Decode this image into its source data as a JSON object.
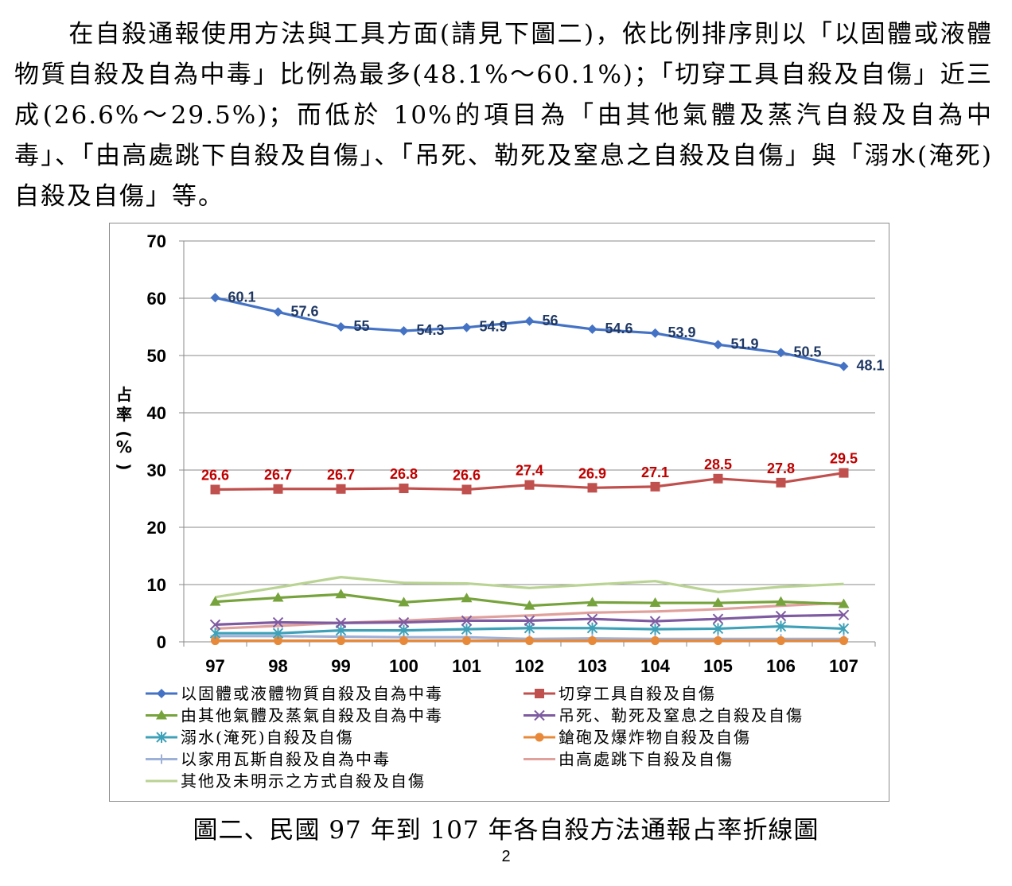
{
  "paragraph": "在自殺通報使用方法與工具方面(請見下圖二)，依比例排序則以「以固體或液體物質自殺及自為中毒」比例為最多(48.1%～60.1%)；「切穿工具自殺及自傷」近三成(26.6%～29.5%)；而低於 10%的項目為「由其他氣體及蒸汽自殺及自為中毒」、「由高處跳下自殺及自傷」、「吊死、勒死及窒息之自殺及自傷」與「溺水(淹死)自殺及自傷」等。",
  "caption": "圖二、民國 97 年到 107 年各自殺方法通報占率折線圖",
  "page_number": "2",
  "chart_data": {
    "type": "line",
    "title": "",
    "xlabel": "",
    "ylabel": "占率(%)",
    "ylim": [
      0,
      70
    ],
    "yticks": [
      "0",
      "10",
      "20",
      "30",
      "40",
      "50",
      "60",
      "70"
    ],
    "grid": true,
    "legend_position": "bottom",
    "categories": [
      "97",
      "98",
      "99",
      "100",
      "101",
      "102",
      "103",
      "104",
      "105",
      "106",
      "107"
    ],
    "series": [
      {
        "name": "以固體或液體物質自殺及自為中毒",
        "color": "#4472C4",
        "marker": "diamond",
        "labels": true,
        "label_color": "#1F3864",
        "values": [
          60.1,
          57.6,
          55,
          54.3,
          54.9,
          56,
          54.6,
          53.9,
          51.9,
          50.5,
          48.1
        ]
      },
      {
        "name": "切穿工具自殺及自傷",
        "color": "#C0504D",
        "marker": "square",
        "labels": true,
        "label_color": "#C00000",
        "values": [
          26.6,
          26.7,
          26.7,
          26.8,
          26.6,
          27.4,
          26.9,
          27.1,
          28.5,
          27.8,
          29.5
        ]
      },
      {
        "name": "由其他氣體及蒸氣自殺及自為中毒",
        "color": "#77A33C",
        "marker": "triangle",
        "labels": false,
        "values": [
          7.0,
          7.7,
          8.3,
          6.9,
          7.6,
          6.3,
          6.9,
          6.8,
          6.8,
          7.0,
          6.6
        ]
      },
      {
        "name": "吊死、勒死及窒息之自殺及自傷",
        "color": "#7E5BA0",
        "marker": "x",
        "labels": false,
        "values": [
          3.0,
          3.4,
          3.3,
          3.4,
          3.7,
          3.7,
          4.0,
          3.6,
          4.0,
          4.5,
          4.7
        ]
      },
      {
        "name": "溺水(淹死)自殺及自傷",
        "color": "#3FA1B8",
        "marker": "asterisk",
        "labels": false,
        "values": [
          1.5,
          1.5,
          2.0,
          2.0,
          2.2,
          2.4,
          2.4,
          2.2,
          2.3,
          2.7,
          2.3
        ]
      },
      {
        "name": "鎗砲及爆炸物自殺及自傷",
        "color": "#E8893A",
        "marker": "circle",
        "labels": false,
        "values": [
          0.2,
          0.2,
          0.2,
          0.2,
          0.2,
          0.2,
          0.2,
          0.2,
          0.2,
          0.2,
          0.2
        ]
      },
      {
        "name": "以家用瓦斯自殺及自為中毒",
        "color": "#9DB0D8",
        "marker": "plus",
        "labels": false,
        "values": [
          1.0,
          1.0,
          0.9,
          0.8,
          0.8,
          0.5,
          0.6,
          0.5,
          0.5,
          0.5,
          0.5
        ]
      },
      {
        "name": "由高處跳下自殺及自傷",
        "color": "#E0A09C",
        "marker": "none",
        "labels": false,
        "values": [
          2.3,
          2.8,
          3.3,
          3.7,
          4.2,
          4.6,
          5.1,
          5.3,
          5.7,
          6.3,
          6.8
        ]
      },
      {
        "name": "其他及未明示之方式自殺及自傷",
        "color": "#B9D393",
        "marker": "none",
        "labels": false,
        "values": [
          7.8,
          9.5,
          11.3,
          10.3,
          10.2,
          9.4,
          10.0,
          10.6,
          8.7,
          9.6,
          10.1
        ]
      }
    ]
  }
}
